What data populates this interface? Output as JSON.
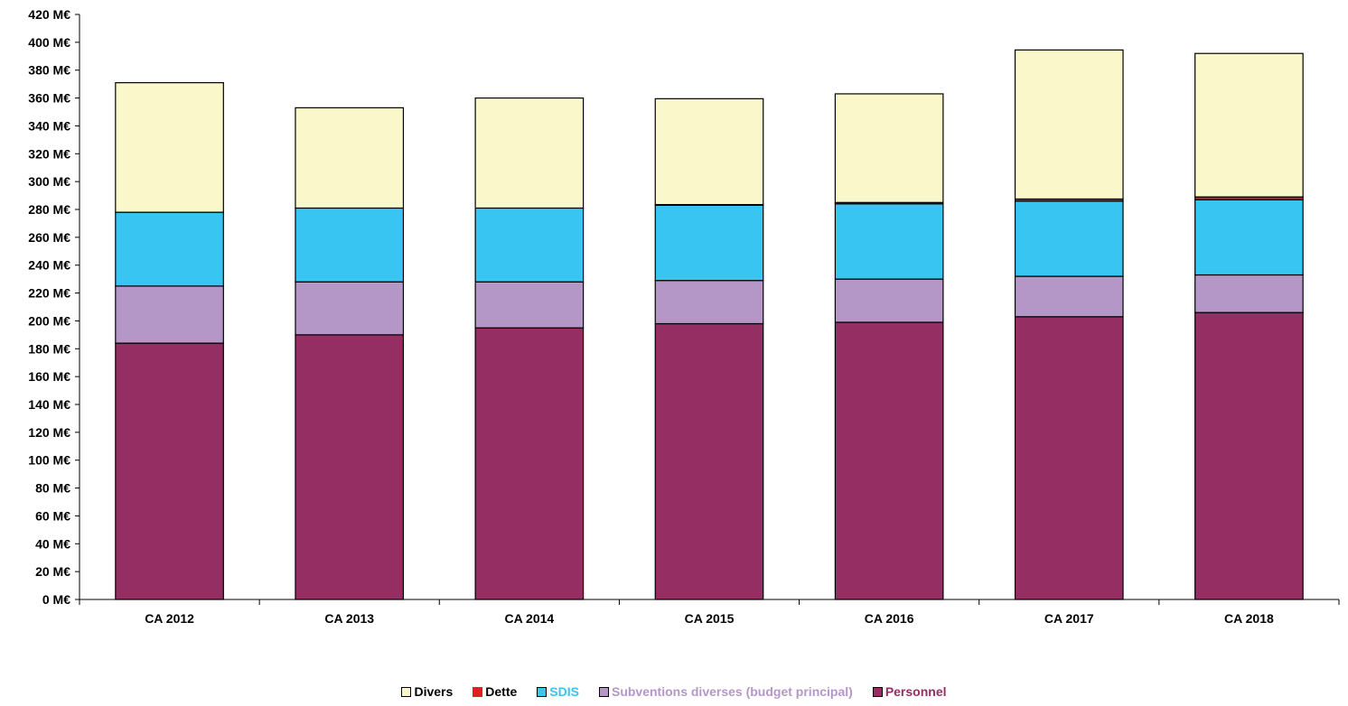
{
  "chart_data": {
    "type": "bar",
    "stacked": true,
    "categories": [
      "CA 2012",
      "CA 2013",
      "CA 2014",
      "CA 2015",
      "CA 2016",
      "CA 2017",
      "CA 2018"
    ],
    "series": [
      {
        "name": "Personnel",
        "color": "#952E62",
        "values": [
          184,
          190,
          195,
          198,
          199,
          203,
          206
        ]
      },
      {
        "name": "Subventions diverses (budget principal)",
        "color": "#B497C7",
        "values": [
          41,
          38,
          33,
          31,
          31,
          29,
          27
        ]
      },
      {
        "name": "SDIS",
        "color": "#38C5F2",
        "values": [
          53,
          53,
          53,
          54,
          54,
          54,
          54
        ]
      },
      {
        "name": "Dette",
        "color": "#E02020",
        "values": [
          0,
          0,
          0,
          0.5,
          1,
          1.5,
          2
        ]
      },
      {
        "name": "Divers",
        "color": "#FAF8CB",
        "values": [
          93,
          72,
          79,
          76,
          78,
          107,
          103
        ]
      }
    ],
    "y_tick_labels": [
      "0 M€",
      "20 M€",
      "40 M€",
      "60 M€",
      "80 M€",
      "100 M€",
      "120 M€",
      "140 M€",
      "160 M€",
      "180 M€",
      "200 M€",
      "220 M€",
      "240 M€",
      "260 M€",
      "280 M€",
      "300 M€",
      "320 M€",
      "340 M€",
      "360 M€",
      "380 M€",
      "400 M€",
      "420 M€"
    ],
    "ylim": [
      0,
      420
    ],
    "y_step": 20,
    "title": "",
    "xlabel": "",
    "ylabel": "",
    "grid": false,
    "legend_position": "bottom",
    "legend_order": [
      "Divers",
      "Dette",
      "SDIS",
      "Subventions diverses (budget principal)",
      "Personnel"
    ],
    "legend_text_colors": {
      "Divers": "#000000",
      "Dette": "#000000",
      "SDIS": "#38C5F2",
      "Subventions diverses (budget principal)": "#B497C7",
      "Personnel": "#952E62"
    }
  }
}
